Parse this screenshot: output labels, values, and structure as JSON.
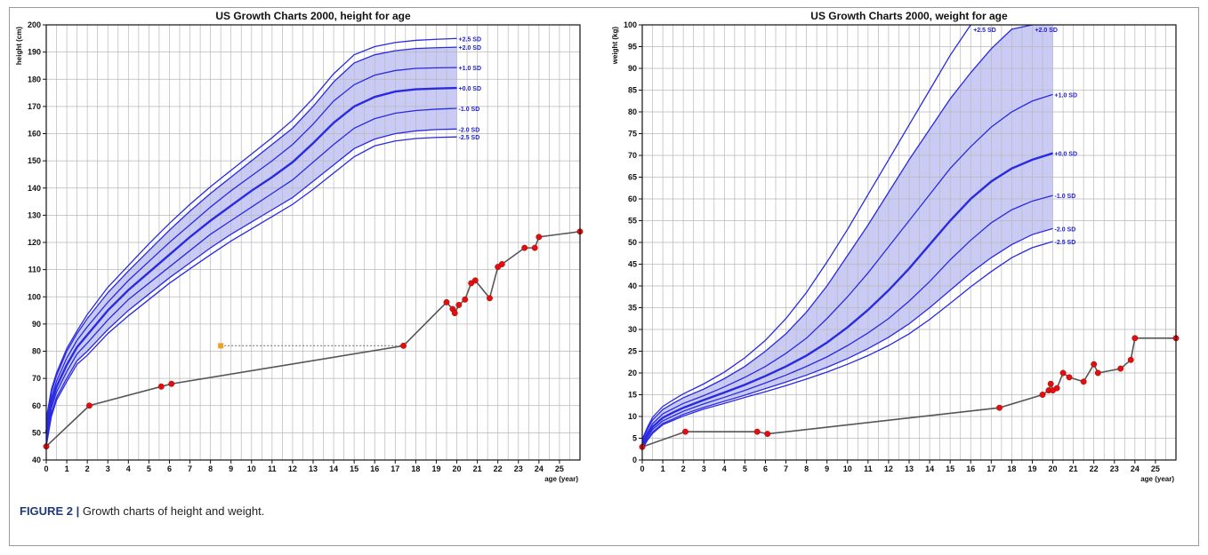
{
  "figure": {
    "caption_label": "FIGURE 2 |",
    "caption_text": " Growth charts of height and weight."
  },
  "colors": {
    "curve": "#2a2ae0",
    "band": "#c9cbf5",
    "patient_line": "#555555",
    "patient_point": "#e01010",
    "marker": "#f0a020",
    "grid": "#b8b8b8"
  },
  "chart_data": [
    {
      "type": "line",
      "title": "US Growth Charts 2000, height for age",
      "xlabel": "age (year)",
      "ylabel": "height (cm)",
      "xlim": [
        0,
        26
      ],
      "ylim": [
        40,
        200
      ],
      "x_ticks": [
        0,
        1,
        2,
        3,
        4,
        5,
        6,
        7,
        8,
        9,
        10,
        11,
        12,
        13,
        14,
        15,
        16,
        17,
        18,
        19,
        20,
        21,
        22,
        23,
        24,
        25
      ],
      "y_ticks": [
        40,
        50,
        60,
        70,
        80,
        90,
        100,
        110,
        120,
        130,
        140,
        150,
        160,
        170,
        180,
        190,
        200
      ],
      "grid": true,
      "shaded_band": [
        "-2.0 SD",
        "+2.0 SD"
      ],
      "reference_x": [
        0,
        0.25,
        0.5,
        1,
        1.5,
        2,
        3,
        4,
        5,
        6,
        7,
        8,
        9,
        10,
        11,
        12,
        13,
        14,
        15,
        16,
        17,
        18,
        19,
        20
      ],
      "reference_curves": [
        {
          "label": "+2.5 SD",
          "values": [
            55,
            66,
            72,
            81,
            87.5,
            93.5,
            103.5,
            111.5,
            119.5,
            127,
            134,
            140.5,
            146.5,
            152.5,
            158.5,
            165,
            173,
            182,
            189,
            192,
            193.5,
            194.3,
            194.7,
            195
          ]
        },
        {
          "label": "+2.0 SD",
          "values": [
            54,
            65,
            71,
            80,
            86.5,
            92,
            101.5,
            109.5,
            117,
            124.5,
            131.5,
            138,
            144,
            150,
            156,
            162,
            170,
            179,
            186,
            189,
            190.5,
            191.3,
            191.6,
            191.8
          ]
        },
        {
          "label": "+1.0 SD",
          "values": [
            52,
            63,
            69,
            77.5,
            84,
            89,
            98,
            106,
            113,
            120,
            126.5,
            133,
            139,
            144.5,
            150,
            156,
            163.5,
            172,
            178,
            181.5,
            183.2,
            184,
            184.2,
            184.3
          ]
        },
        {
          "label": "+0.0 SD",
          "values": [
            50,
            61,
            67,
            75,
            81.5,
            86,
            95,
            102.5,
            109,
            115.5,
            122,
            128,
            133.5,
            139,
            144,
            149.5,
            156.5,
            164,
            170,
            173.5,
            175.5,
            176.3,
            176.6,
            176.8
          ]
        },
        {
          "label": "-1.0 SD",
          "values": [
            48,
            59,
            65,
            72.5,
            79,
            83,
            91.5,
            99,
            105,
            111,
            117,
            123,
            128,
            133,
            138,
            143,
            149.5,
            156,
            162,
            165.5,
            167.5,
            168.5,
            169,
            169.3
          ]
        },
        {
          "label": "-2.0 SD",
          "values": [
            46,
            57,
            63,
            70,
            76.5,
            80,
            88,
            95,
            101,
            107,
            112.5,
            118,
            123,
            127.5,
            132,
            136.5,
            142.5,
            148.5,
            154.5,
            158,
            160,
            161,
            161.5,
            161.7
          ]
        },
        {
          "label": "-2.5 SD",
          "values": [
            45,
            56,
            62,
            68.8,
            75.2,
            78.5,
            86.5,
            93,
            99,
            105,
            110.3,
            115.5,
            120.5,
            125,
            129.5,
            134,
            139.5,
            145.5,
            151.5,
            155.5,
            157.3,
            158.2,
            158.6,
            158.8
          ]
        }
      ],
      "patient": {
        "x": [
          0,
          2.1,
          5.6,
          6.1,
          17.4,
          19.5,
          19.8,
          19.9,
          20.1,
          20.4,
          20.7,
          20.9,
          21.6,
          22.0,
          22.2,
          23.3,
          23.8,
          24.0,
          26.0
        ],
        "y": [
          45,
          60,
          67,
          68,
          82,
          98,
          95.5,
          94,
          97,
          99,
          105,
          106,
          99.5,
          111,
          112,
          118,
          118,
          122,
          124
        ]
      },
      "marker": {
        "x": 8.5,
        "y": 82
      }
    },
    {
      "type": "line",
      "title": "US Growth Charts 2000, weight for age",
      "xlabel": "age (year)",
      "ylabel": "weight (kg)",
      "xlim": [
        0,
        26
      ],
      "ylim": [
        0,
        100
      ],
      "x_ticks": [
        0,
        1,
        2,
        3,
        4,
        5,
        6,
        7,
        8,
        9,
        10,
        11,
        12,
        13,
        14,
        15,
        16,
        17,
        18,
        19,
        20,
        21,
        22,
        23,
        24,
        25
      ],
      "y_ticks": [
        0,
        5,
        10,
        15,
        20,
        25,
        30,
        35,
        40,
        45,
        50,
        55,
        60,
        65,
        70,
        75,
        80,
        85,
        90,
        95,
        100
      ],
      "grid": true,
      "shaded_band": [
        "-2.0 SD",
        "+2.0 SD"
      ],
      "reference_x": [
        0,
        0.25,
        0.5,
        1,
        1.5,
        2,
        3,
        4,
        5,
        6,
        7,
        8,
        9,
        10,
        11,
        12,
        13,
        14,
        15,
        16,
        17,
        18,
        19,
        20
      ],
      "reference_curves": [
        {
          "label": "+2.5 SD",
          "values": [
            4.8,
            7.5,
            9.8,
            12.3,
            13.8,
            15.2,
            17.5,
            20.2,
            23.5,
            27.5,
            32.5,
            38.5,
            45.5,
            53,
            61,
            69,
            77,
            85,
            93,
            100,
            null,
            null,
            null,
            null
          ]
        },
        {
          "label": "+2.0 SD",
          "values": [
            4.5,
            7,
            9.2,
            11.6,
            13,
            14.3,
            16.3,
            18.7,
            21.5,
            25,
            29,
            34,
            40,
            47,
            54,
            61.5,
            69,
            76,
            83,
            89,
            94.5,
            99,
            100,
            null
          ]
        },
        {
          "label": "+1.0 SD",
          "values": [
            4.0,
            6.3,
            8.3,
            10.6,
            11.8,
            13,
            14.8,
            16.8,
            19,
            21.5,
            24.5,
            28,
            32.5,
            37.5,
            43,
            49,
            55,
            61,
            67,
            72,
            76.5,
            80,
            82.5,
            84
          ]
        },
        {
          "label": "+0.0 SD",
          "values": [
            3.5,
            5.7,
            7.6,
            9.7,
            10.9,
            12,
            13.8,
            15.5,
            17.3,
            19.3,
            21.5,
            24,
            27,
            30.5,
            34.5,
            39,
            44,
            49.5,
            55,
            60,
            64,
            67,
            69,
            70.5
          ]
        },
        {
          "label": "-1.0 SD",
          "values": [
            3.1,
            5.2,
            7,
            9,
            10.1,
            11.2,
            12.9,
            14.4,
            16,
            17.7,
            19.5,
            21.5,
            23.7,
            26.3,
            29.2,
            32.5,
            36.5,
            41,
            46,
            50.5,
            54.5,
            57.5,
            59.5,
            60.8
          ]
        },
        {
          "label": "-2.0 SD",
          "values": [
            2.7,
            4.7,
            6.4,
            8.4,
            9.4,
            10.5,
            12.1,
            13.5,
            14.9,
            16.4,
            17.9,
            19.5,
            21.3,
            23.3,
            25.6,
            28.2,
            31.3,
            35,
            39,
            43,
            46.5,
            49.5,
            51.8,
            53.2
          ]
        },
        {
          "label": "-2.5 SD",
          "values": [
            2.5,
            4.5,
            6.1,
            8.1,
            9.1,
            10.1,
            11.7,
            13,
            14.4,
            15.7,
            17.1,
            18.6,
            20.2,
            22,
            24,
            26.3,
            29,
            32.3,
            36,
            39.8,
            43.3,
            46.5,
            48.8,
            50.2
          ]
        }
      ],
      "patient": {
        "x": [
          0,
          2.1,
          5.6,
          6.1,
          17.4,
          19.5,
          19.8,
          19.9,
          20.0,
          20.2,
          20.5,
          20.8,
          21.5,
          22.0,
          22.2,
          23.3,
          23.8,
          24.0,
          26.0
        ],
        "y": [
          3,
          6.5,
          6.5,
          6,
          12,
          15,
          16,
          17.5,
          16,
          16.5,
          20,
          19,
          18,
          22,
          20,
          21,
          23,
          28,
          28
        ]
      }
    }
  ]
}
